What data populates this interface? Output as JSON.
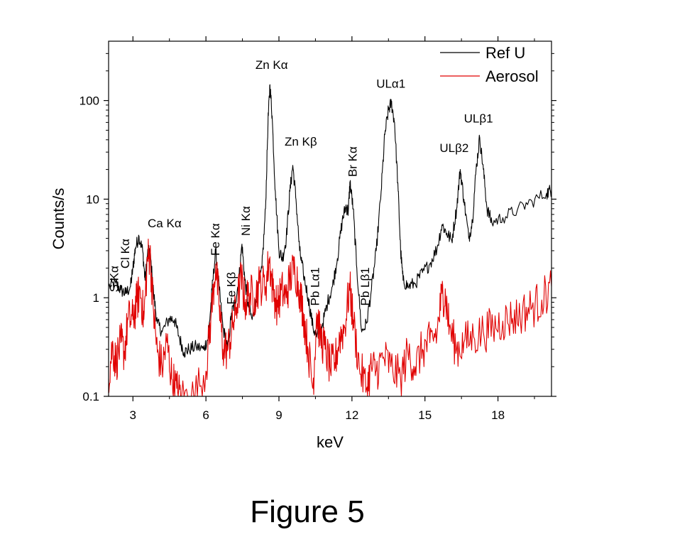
{
  "figure_caption": "Figure 5",
  "chart_data": {
    "type": "line",
    "title": "",
    "xlabel": "keV",
    "ylabel": "Counts/s",
    "xlim": [
      2,
      20.2
    ],
    "ylim": [
      0.1,
      400
    ],
    "yscale": "log",
    "grid": false,
    "legend_position": "top-right",
    "x_ticks": [
      {
        "value": 3,
        "label": "3"
      },
      {
        "value": 6,
        "label": "6"
      },
      {
        "value": 9,
        "label": "9"
      },
      {
        "value": 12,
        "label": "12"
      },
      {
        "value": 15,
        "label": "15"
      },
      {
        "value": 18,
        "label": "18"
      }
    ],
    "y_ticks": [
      {
        "value": 0.1,
        "label": "0.1"
      },
      {
        "value": 1,
        "label": "1"
      },
      {
        "value": 10,
        "label": "10"
      },
      {
        "value": 100,
        "label": "100"
      }
    ],
    "series": [
      {
        "name": "Ref U",
        "color": "#000000",
        "points": [
          [
            2.0,
            1.3
          ],
          [
            2.3,
            1.4
          ],
          [
            2.5,
            1.2
          ],
          [
            2.7,
            1.1
          ],
          [
            2.9,
            1.3
          ],
          [
            3.0,
            2.0
          ],
          [
            3.1,
            3.2
          ],
          [
            3.25,
            4.2
          ],
          [
            3.4,
            3.0
          ],
          [
            3.5,
            1.5
          ],
          [
            3.6,
            2.8
          ],
          [
            3.7,
            3.0
          ],
          [
            3.85,
            1.1
          ],
          [
            4.0,
            0.55
          ],
          [
            4.2,
            0.45
          ],
          [
            4.5,
            0.62
          ],
          [
            4.7,
            0.6
          ],
          [
            4.9,
            0.4
          ],
          [
            5.1,
            0.28
          ],
          [
            5.3,
            0.3
          ],
          [
            5.6,
            0.32
          ],
          [
            5.9,
            0.3
          ],
          [
            6.1,
            0.4
          ],
          [
            6.25,
            1.2
          ],
          [
            6.4,
            3.0
          ],
          [
            6.55,
            1.2
          ],
          [
            6.7,
            0.5
          ],
          [
            6.9,
            0.3
          ],
          [
            7.05,
            0.7
          ],
          [
            7.2,
            0.9
          ],
          [
            7.35,
            1.5
          ],
          [
            7.48,
            3.5
          ],
          [
            7.6,
            1.5
          ],
          [
            7.75,
            0.8
          ],
          [
            7.9,
            0.6
          ],
          [
            8.1,
            1.0
          ],
          [
            8.3,
            2.0
          ],
          [
            8.45,
            8.0
          ],
          [
            8.55,
            60
          ],
          [
            8.63,
            145
          ],
          [
            8.72,
            70
          ],
          [
            8.85,
            12
          ],
          [
            9.0,
            3.0
          ],
          [
            9.15,
            2.5
          ],
          [
            9.3,
            4.0
          ],
          [
            9.45,
            12
          ],
          [
            9.57,
            22
          ],
          [
            9.7,
            10
          ],
          [
            9.85,
            3.0
          ],
          [
            10.0,
            1.8
          ],
          [
            10.2,
            1.0
          ],
          [
            10.4,
            0.5
          ],
          [
            10.55,
            0.4
          ],
          [
            10.8,
            0.55
          ],
          [
            11.0,
            0.9
          ],
          [
            11.2,
            1.3
          ],
          [
            11.4,
            2.5
          ],
          [
            11.6,
            6.0
          ],
          [
            11.75,
            8.5
          ],
          [
            11.85,
            7.5
          ],
          [
            11.92,
            15
          ],
          [
            12.05,
            8.0
          ],
          [
            12.2,
            2.0
          ],
          [
            12.4,
            0.45
          ],
          [
            12.6,
            0.55
          ],
          [
            12.8,
            1.2
          ],
          [
            13.0,
            3.0
          ],
          [
            13.2,
            12
          ],
          [
            13.35,
            45
          ],
          [
            13.5,
            80
          ],
          [
            13.62,
            95
          ],
          [
            13.75,
            60
          ],
          [
            13.9,
            12
          ],
          [
            14.0,
            3.0
          ],
          [
            14.1,
            1.5
          ],
          [
            14.3,
            1.3
          ],
          [
            14.6,
            1.4
          ],
          [
            14.9,
            1.8
          ],
          [
            15.2,
            2.2
          ],
          [
            15.5,
            3.2
          ],
          [
            15.7,
            5.5
          ],
          [
            15.9,
            4.5
          ],
          [
            16.1,
            3.8
          ],
          [
            16.3,
            8.0
          ],
          [
            16.45,
            20
          ],
          [
            16.6,
            10
          ],
          [
            16.8,
            4.0
          ],
          [
            16.95,
            6.0
          ],
          [
            17.1,
            20
          ],
          [
            17.25,
            42
          ],
          [
            17.4,
            20
          ],
          [
            17.55,
            8.0
          ],
          [
            17.75,
            5.8
          ],
          [
            18.2,
            6.5
          ],
          [
            18.8,
            7.8
          ],
          [
            19.4,
            9.5
          ],
          [
            20.0,
            11.5
          ],
          [
            20.2,
            12.5
          ]
        ]
      },
      {
        "name": "Aerosol",
        "color": "#e00000",
        "points": [
          [
            2.0,
            0.15
          ],
          [
            2.15,
            0.32
          ],
          [
            2.3,
            0.22
          ],
          [
            2.5,
            0.35
          ],
          [
            2.65,
            0.28
          ],
          [
            2.8,
            0.6
          ],
          [
            3.0,
            0.6
          ],
          [
            3.15,
            0.9
          ],
          [
            3.3,
            1.2
          ],
          [
            3.45,
            0.6
          ],
          [
            3.6,
            2.5
          ],
          [
            3.7,
            2.8
          ],
          [
            3.85,
            0.7
          ],
          [
            4.0,
            0.28
          ],
          [
            4.2,
            0.2
          ],
          [
            4.4,
            0.35
          ],
          [
            4.6,
            0.15
          ],
          [
            4.8,
            0.12
          ],
          [
            5.0,
            0.1
          ],
          [
            5.5,
            0.1
          ],
          [
            6.0,
            0.18
          ],
          [
            6.2,
            0.6
          ],
          [
            6.4,
            2.2
          ],
          [
            6.55,
            0.8
          ],
          [
            6.7,
            0.3
          ],
          [
            6.9,
            0.3
          ],
          [
            7.1,
            0.5
          ],
          [
            7.25,
            0.8
          ],
          [
            7.45,
            1.6
          ],
          [
            7.6,
            0.9
          ],
          [
            7.8,
            1.1
          ],
          [
            8.0,
            1.0
          ],
          [
            8.2,
            1.4
          ],
          [
            8.45,
            1.3
          ],
          [
            8.6,
            2.5
          ],
          [
            8.75,
            1.2
          ],
          [
            8.95,
            0.8
          ],
          [
            9.1,
            1.2
          ],
          [
            9.3,
            1.0
          ],
          [
            9.45,
            1.6
          ],
          [
            9.65,
            2.0
          ],
          [
            9.85,
            1.2
          ],
          [
            10.0,
            0.7
          ],
          [
            10.2,
            0.3
          ],
          [
            10.4,
            0.12
          ],
          [
            10.55,
            0.7
          ],
          [
            10.7,
            0.4
          ],
          [
            10.9,
            0.3
          ],
          [
            11.1,
            0.2
          ],
          [
            11.3,
            0.22
          ],
          [
            11.5,
            0.4
          ],
          [
            11.7,
            0.5
          ],
          [
            11.9,
            1.3
          ],
          [
            12.05,
            0.6
          ],
          [
            12.3,
            0.2
          ],
          [
            12.6,
            0.12
          ],
          [
            12.8,
            0.2
          ],
          [
            13.0,
            0.18
          ],
          [
            13.3,
            0.25
          ],
          [
            13.6,
            0.2
          ],
          [
            14.0,
            0.15
          ],
          [
            14.3,
            0.28
          ],
          [
            14.6,
            0.2
          ],
          [
            14.9,
            0.3
          ],
          [
            15.2,
            0.35
          ],
          [
            15.5,
            0.45
          ],
          [
            15.7,
            1.1
          ],
          [
            15.85,
            1.0
          ],
          [
            16.0,
            0.5
          ],
          [
            16.3,
            0.3
          ],
          [
            16.6,
            0.35
          ],
          [
            17.0,
            0.4
          ],
          [
            17.4,
            0.45
          ],
          [
            17.8,
            0.5
          ],
          [
            18.2,
            0.58
          ],
          [
            18.6,
            0.62
          ],
          [
            19.0,
            0.7
          ],
          [
            19.4,
            0.8
          ],
          [
            19.8,
            0.95
          ],
          [
            20.2,
            1.3
          ]
        ]
      }
    ],
    "annotations": [
      {
        "text": "S Kα",
        "x": 2.4,
        "y": 1.55,
        "rotation": -90
      },
      {
        "text": "Cl Kα",
        "x": 2.85,
        "y": 2.8,
        "rotation": -90
      },
      {
        "text": "Ca Kα",
        "x": 4.3,
        "y": 5.2,
        "rotation": 0
      },
      {
        "text": "Fe Kα",
        "x": 6.55,
        "y": 3.9,
        "rotation": -90
      },
      {
        "text": "Fe Kβ",
        "x": 7.2,
        "y": 1.25,
        "rotation": -90
      },
      {
        "text": "Ni Kα",
        "x": 7.8,
        "y": 6.0,
        "rotation": -90
      },
      {
        "text": "Zn Kα",
        "x": 8.7,
        "y": 210,
        "rotation": 0
      },
      {
        "text": "Zn Kβ",
        "x": 9.9,
        "y": 35,
        "rotation": 0
      },
      {
        "text": "Pb Lα1",
        "x": 10.65,
        "y": 1.3,
        "rotation": -90
      },
      {
        "text": "Br Kα",
        "x": 12.2,
        "y": 24,
        "rotation": -90
      },
      {
        "text": "Pb Lβ1",
        "x": 12.7,
        "y": 1.3,
        "rotation": -90
      },
      {
        "text": "ULα1",
        "x": 13.6,
        "y": 135,
        "rotation": 0
      },
      {
        "text": "ULβ2",
        "x": 16.2,
        "y": 30,
        "rotation": 0
      },
      {
        "text": "ULβ1",
        "x": 17.2,
        "y": 60,
        "rotation": 0
      }
    ]
  }
}
